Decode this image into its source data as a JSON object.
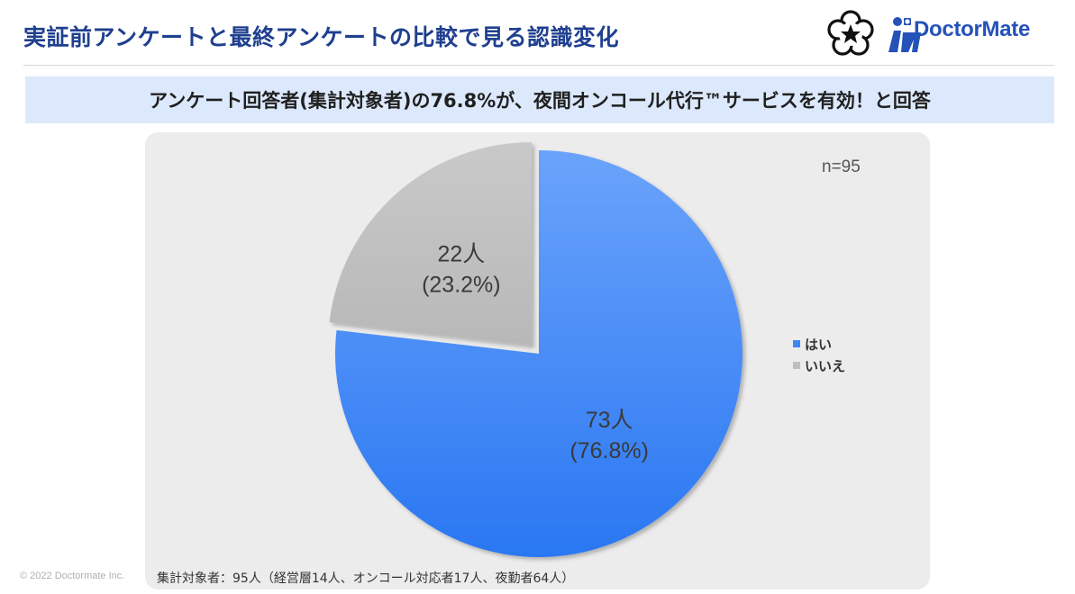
{
  "header": {
    "title": "実証前アンケートと最終アンケートの比較で見る認識変化",
    "brand": "DoctorMate"
  },
  "banner": {
    "text": "アンケート回答者(集計対象者)の76.8%が、夜間オンコール代行™サービスを有効！と回答"
  },
  "chart_data": {
    "type": "pie",
    "annotation": "n=95",
    "start_angle_deg": 0,
    "direction": "clockwise",
    "slices": [
      {
        "label": "はい",
        "count": 73,
        "percent": 76.8,
        "count_text": "73人",
        "percent_text": "(76.8%)",
        "color": "#3d86f7",
        "exploded": false
      },
      {
        "label": "いいえ",
        "count": 22,
        "percent": 23.2,
        "count_text": "22人",
        "percent_text": "(23.2%)",
        "color": "#bfbfbf",
        "exploded": true
      }
    ],
    "legend": {
      "position": "right",
      "entries": [
        "はい",
        "いいえ"
      ]
    }
  },
  "footnote": "集計対象者：95人（経営層14人、オンコール対応者17人、夜勤者64人）",
  "copyright": "© 2022 Doctormate Inc."
}
